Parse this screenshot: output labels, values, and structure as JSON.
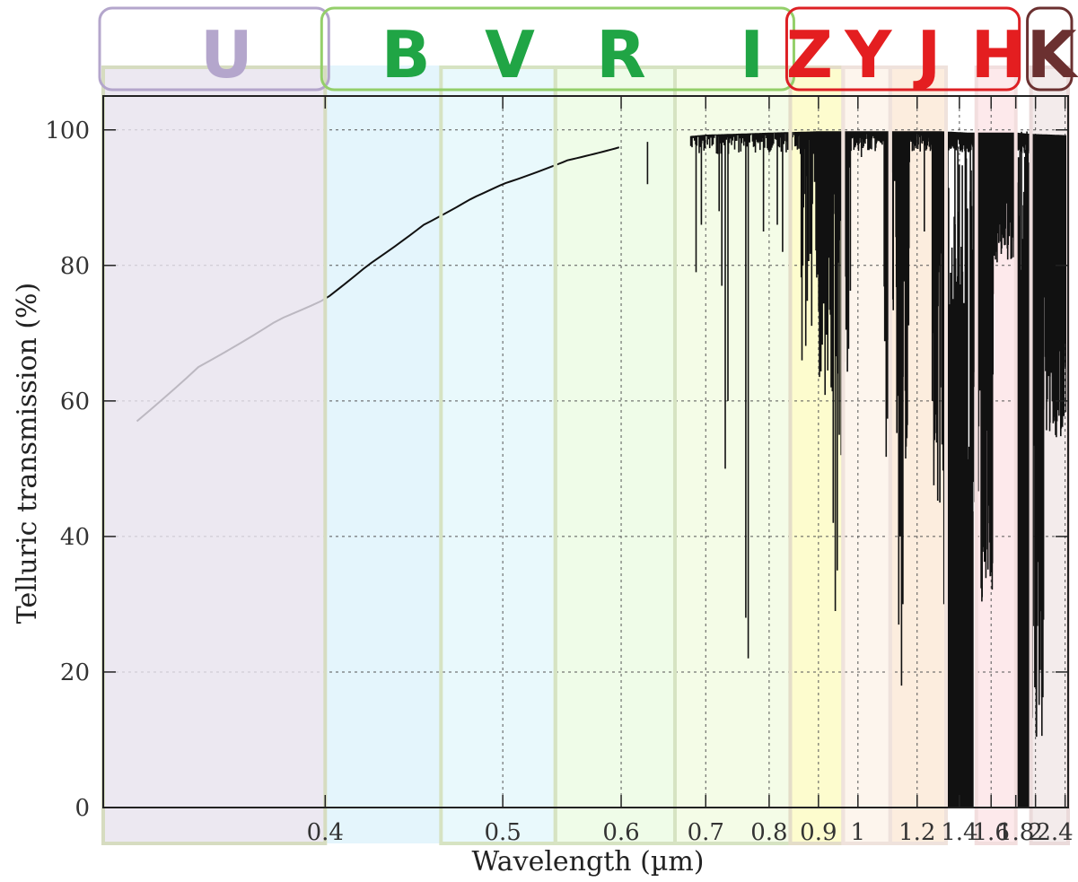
{
  "chart_data": {
    "type": "line",
    "title": "",
    "xlabel": "Wavelength (µm)",
    "ylabel": "Telluric transmission (%)",
    "x_scale": "reciprocal",
    "xlim": [
      0.32,
      2.45
    ],
    "ylim": [
      0,
      105
    ],
    "grid": true,
    "x_ticks": [
      {
        "value": 0.4,
        "label": "0.4"
      },
      {
        "value": 0.5,
        "label": "0.5"
      },
      {
        "value": 0.6,
        "label": "0.6"
      },
      {
        "value": 0.7,
        "label": "0.7"
      },
      {
        "value": 0.8,
        "label": "0.8"
      },
      {
        "value": 0.9,
        "label": "0.9"
      },
      {
        "value": 1.0,
        "label": "1"
      },
      {
        "value": 1.2,
        "label": "1.2"
      },
      {
        "value": 1.4,
        "label": "1.4"
      },
      {
        "value": 1.6,
        "label": "1.6"
      },
      {
        "value": 1.8,
        "label": "1.8"
      },
      {
        "value": 2.0,
        "label": "2"
      },
      {
        "value": 2.4,
        "label": "2.4"
      }
    ],
    "y_ticks": [
      {
        "value": 0,
        "label": "0"
      },
      {
        "value": 20,
        "label": "20"
      },
      {
        "value": 40,
        "label": "40"
      },
      {
        "value": 60,
        "label": "60"
      },
      {
        "value": 80,
        "label": "80"
      },
      {
        "value": 100,
        "label": "100"
      }
    ],
    "continuum": [
      {
        "x": 0.33,
        "y": 57
      },
      {
        "x": 0.35,
        "y": 65
      },
      {
        "x": 0.38,
        "y": 72
      },
      {
        "x": 0.4,
        "y": 75
      },
      {
        "x": 0.42,
        "y": 80
      },
      {
        "x": 0.45,
        "y": 86
      },
      {
        "x": 0.48,
        "y": 90
      },
      {
        "x": 0.5,
        "y": 92
      },
      {
        "x": 0.55,
        "y": 95.5
      },
      {
        "x": 0.6,
        "y": 97.5
      },
      {
        "x": 0.65,
        "y": 98.8
      },
      {
        "x": 0.7,
        "y": 99.3
      },
      {
        "x": 0.8,
        "y": 99.6
      },
      {
        "x": 0.9,
        "y": 99.8
      },
      {
        "x": 1.0,
        "y": 99.8
      },
      {
        "x": 1.3,
        "y": 99.8
      },
      {
        "x": 1.45,
        "y": 99.6
      },
      {
        "x": 1.8,
        "y": 99.6
      },
      {
        "x": 1.95,
        "y": 99.4
      },
      {
        "x": 2.45,
        "y": 99.2
      }
    ],
    "absorption_lines": [
      {
        "x": 0.59,
        "y": 97
      },
      {
        "x": 0.628,
        "y": 92
      },
      {
        "x": 0.687,
        "y": 79
      },
      {
        "x": 0.694,
        "y": 86
      },
      {
        "x": 0.719,
        "y": 88
      },
      {
        "x": 0.723,
        "y": 77
      },
      {
        "x": 0.728,
        "y": 50
      },
      {
        "x": 0.732,
        "y": 60
      },
      {
        "x": 0.76,
        "y": 28
      },
      {
        "x": 0.764,
        "y": 22
      },
      {
        "x": 0.79,
        "y": 85
      },
      {
        "x": 0.815,
        "y": 86
      },
      {
        "x": 0.825,
        "y": 82
      },
      {
        "x": 0.915,
        "y": 82
      },
      {
        "x": 0.93,
        "y": 62
      },
      {
        "x": 0.935,
        "y": 42
      },
      {
        "x": 0.94,
        "y": 29
      },
      {
        "x": 0.945,
        "y": 35
      },
      {
        "x": 0.95,
        "y": 55
      },
      {
        "x": 0.955,
        "y": 52
      },
      {
        "x": 1.01,
        "y": 96
      },
      {
        "x": 1.12,
        "y": 90
      },
      {
        "x": 1.13,
        "y": 27
      },
      {
        "x": 1.135,
        "y": 40
      },
      {
        "x": 1.14,
        "y": 18
      },
      {
        "x": 1.145,
        "y": 30
      },
      {
        "x": 1.16,
        "y": 60
      },
      {
        "x": 1.23,
        "y": 85
      },
      {
        "x": 1.265,
        "y": 60
      },
      {
        "x": 1.27,
        "y": 70
      },
      {
        "x": 1.3,
        "y": 45
      },
      {
        "x": 1.32,
        "y": 30
      }
    ],
    "absorption_bands": [
      {
        "from": 1.33,
        "to": 1.48,
        "min_y": 0
      },
      {
        "from": 1.8,
        "to": 1.95,
        "min_y": 0
      }
    ],
    "band_regions": [
      {
        "from": 0.4,
        "to": 0.46,
        "color": "#dff3fc"
      },
      {
        "from": 0.46,
        "to": 0.54,
        "color": "#e5f8fb"
      },
      {
        "from": 0.54,
        "to": 0.66,
        "color": "#ecfbe4"
      },
      {
        "from": 0.66,
        "to": 0.84,
        "color": "#f2fbe3"
      },
      {
        "from": 0.84,
        "to": 0.96,
        "color": "#fdfbc5"
      },
      {
        "from": 0.96,
        "to": 1.1,
        "color": "#fdf3ea"
      },
      {
        "from": 1.1,
        "to": 1.33,
        "color": "#fbead8"
      },
      {
        "from": 1.5,
        "to": 1.8,
        "color": "#fde5e8"
      },
      {
        "from": 1.95,
        "to": 2.45,
        "color": "#f1e8e8"
      }
    ],
    "filter_boxes": [
      {
        "from": 0.32,
        "to": 0.4,
        "fill": "#e7e2ed",
        "stroke": "#d6dcc0"
      },
      {
        "from": 0.46,
        "to": 0.54,
        "fill": "none",
        "stroke": "#d6e3c2"
      },
      {
        "from": 0.54,
        "to": 0.66,
        "fill": "none",
        "stroke": "#d6e3c2"
      },
      {
        "from": 0.66,
        "to": 0.84,
        "fill": "none",
        "stroke": "#d6e3c2"
      },
      {
        "from": 0.84,
        "to": 0.96,
        "fill": "none",
        "stroke": "#e4ddc8"
      },
      {
        "from": 0.96,
        "to": 1.1,
        "fill": "none",
        "stroke": "#efe2dc"
      },
      {
        "from": 1.1,
        "to": 1.33,
        "fill": "none",
        "stroke": "#efe2dc"
      },
      {
        "from": 1.5,
        "to": 1.8,
        "fill": "none",
        "stroke": "#f2dede"
      },
      {
        "from": 1.95,
        "to": 2.45,
        "fill": "none",
        "stroke": "#eadada"
      }
    ],
    "band_groups": [
      {
        "from": 0.32,
        "to": 0.4,
        "color": "#b4a6cc"
      },
      {
        "from": 0.4,
        "to": 0.84,
        "color": "#94cf6a"
      },
      {
        "from": 0.84,
        "to": 1.8,
        "color": "#dd2024"
      },
      {
        "from": 1.95,
        "to": 2.45,
        "color": "#6b3030"
      }
    ],
    "band_labels": [
      {
        "label": "U",
        "x": 0.36,
        "color": "#b4a6cc"
      },
      {
        "label": "B",
        "x": 0.44,
        "color": "#20a545"
      },
      {
        "label": "V",
        "x": 0.505,
        "color": "#20a545"
      },
      {
        "label": "R",
        "x": 0.6,
        "color": "#20a545"
      },
      {
        "label": "I",
        "x": 0.77,
        "color": "#20a545"
      },
      {
        "label": "Z",
        "x": 0.88,
        "color": "#e41e20"
      },
      {
        "label": "Y",
        "x": 1.03,
        "color": "#e41e20"
      },
      {
        "label": "J",
        "x": 1.25,
        "color": "#e41e20"
      },
      {
        "label": "H",
        "x": 1.65,
        "color": "#e41e20"
      },
      {
        "label": "K",
        "x": 2.2,
        "color": "#6b3030"
      }
    ]
  }
}
